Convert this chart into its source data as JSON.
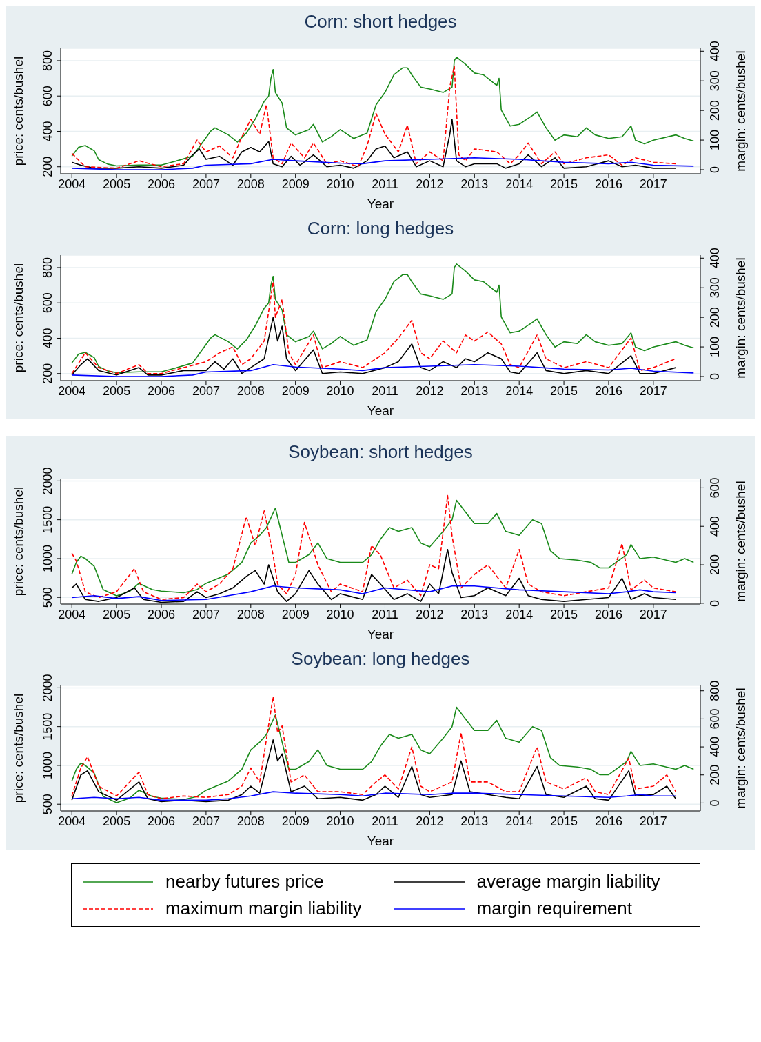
{
  "chart_data": [
    {
      "type": "line",
      "title": "Corn: short hedges",
      "xlabel": "Year",
      "ylabel": "price: cents/bushel",
      "y2label": "margin: cents/bushel",
      "xlim": [
        2003.75,
        2018.05
      ],
      "xticks": [
        2004,
        2005,
        2006,
        2007,
        2008,
        2009,
        2010,
        2011,
        2012,
        2013,
        2014,
        2015,
        2016,
        2017
      ],
      "ylim": [
        160,
        870
      ],
      "yticks": [
        200,
        400,
        600,
        800
      ],
      "y2lim": [
        -14,
        410
      ],
      "y2ticks": [
        0,
        100,
        200,
        300,
        400
      ],
      "grid": "y",
      "legend": false,
      "series": [
        {
          "color": "#1a8a1a",
          "line_style": "solid",
          "x": [
            2004.0,
            2004.15,
            2004.3,
            2004.5,
            2004.6,
            2004.8,
            2005.0,
            2005.5,
            2006.0,
            2006.3,
            2006.7,
            2006.9,
            2007.1,
            2007.2,
            2007.5,
            2007.7,
            2007.9,
            2008.1,
            2008.3,
            2008.4,
            2008.45,
            2008.5,
            2008.55,
            2008.7,
            2008.8,
            2009.0,
            2009.3,
            2009.4,
            2009.6,
            2009.8,
            2010.0,
            2010.3,
            2010.6,
            2010.8,
            2011.0,
            2011.2,
            2011.4,
            2011.5,
            2011.6,
            2011.8,
            2012.0,
            2012.3,
            2012.5,
            2012.55,
            2012.6,
            2012.8,
            2013.0,
            2013.2,
            2013.5,
            2013.55,
            2013.6,
            2013.8,
            2014.0,
            2014.3,
            2014.4,
            2014.6,
            2014.8,
            2015.0,
            2015.3,
            2015.5,
            2015.7,
            2016.0,
            2016.3,
            2016.5,
            2016.6,
            2016.8,
            2017.0,
            2017.5,
            2017.7,
            2017.9
          ],
          "values": [
            260,
            310,
            320,
            290,
            240,
            215,
            205,
            210,
            210,
            230,
            260,
            330,
            400,
            420,
            380,
            340,
            390,
            470,
            570,
            600,
            700,
            750,
            620,
            560,
            420,
            380,
            410,
            440,
            340,
            370,
            410,
            360,
            390,
            550,
            620,
            720,
            760,
            760,
            720,
            650,
            640,
            620,
            650,
            800,
            820,
            780,
            730,
            720,
            660,
            700,
            520,
            430,
            440,
            490,
            510,
            420,
            350,
            380,
            370,
            420,
            380,
            360,
            370,
            430,
            350,
            330,
            350,
            380,
            360,
            345
          ]
        },
        {
          "color": "#000000",
          "line_style": "solid",
          "axis": "y2",
          "x": [
            2004.0,
            2004.2,
            2004.5,
            2005.0,
            2005.5,
            2006.0,
            2006.5,
            2006.7,
            2006.85,
            2007.0,
            2007.3,
            2007.6,
            2007.8,
            2008.0,
            2008.2,
            2008.4,
            2008.5,
            2008.7,
            2008.9,
            2009.1,
            2009.4,
            2009.7,
            2010.0,
            2010.3,
            2010.6,
            2010.8,
            2011.0,
            2011.2,
            2011.5,
            2011.7,
            2012.0,
            2012.3,
            2012.45,
            2012.5,
            2012.6,
            2012.8,
            2013.0,
            2013.5,
            2013.7,
            2014.0,
            2014.2,
            2014.5,
            2014.8,
            2015.0,
            2015.5,
            2016.0,
            2016.3,
            2016.6,
            2017.0,
            2017.5
          ],
          "values": [
            25,
            15,
            5,
            5,
            10,
            5,
            15,
            50,
            70,
            35,
            45,
            15,
            60,
            75,
            60,
            95,
            20,
            10,
            45,
            15,
            50,
            10,
            15,
            5,
            30,
            70,
            80,
            40,
            60,
            10,
            30,
            10,
            120,
            170,
            30,
            10,
            20,
            20,
            5,
            20,
            50,
            10,
            40,
            5,
            10,
            30,
            10,
            15,
            5,
            5
          ]
        },
        {
          "color": "#ff0000",
          "line_style": "dashed",
          "axis": "y2",
          "x": [
            2004.0,
            2004.3,
            2005.0,
            2005.5,
            2006.0,
            2006.5,
            2006.8,
            2007.0,
            2007.3,
            2007.6,
            2007.8,
            2008.0,
            2008.2,
            2008.35,
            2008.5,
            2008.7,
            2008.9,
            2009.2,
            2009.4,
            2009.7,
            2010.0,
            2010.4,
            2010.6,
            2010.8,
            2011.0,
            2011.3,
            2011.5,
            2011.7,
            2012.0,
            2012.3,
            2012.45,
            2012.55,
            2012.65,
            2012.8,
            2013.0,
            2013.5,
            2013.8,
            2014.0,
            2014.2,
            2014.5,
            2014.8,
            2015.0,
            2015.5,
            2016.0,
            2016.3,
            2016.6,
            2017.0,
            2017.5
          ],
          "values": [
            55,
            10,
            5,
            30,
            10,
            20,
            100,
            60,
            80,
            40,
            110,
            170,
            120,
            220,
            40,
            20,
            90,
            40,
            90,
            20,
            30,
            10,
            80,
            190,
            120,
            60,
            150,
            20,
            60,
            30,
            280,
            350,
            50,
            30,
            70,
            60,
            20,
            50,
            90,
            20,
            60,
            20,
            40,
            50,
            15,
            40,
            25,
            20
          ]
        },
        {
          "color": "#0000ff",
          "line_style": "solid",
          "axis": "y2",
          "x": [
            2004.0,
            2005.0,
            2006.0,
            2006.7,
            2007.0,
            2008.0,
            2008.5,
            2009.0,
            2010.0,
            2010.5,
            2011.0,
            2012.0,
            2013.0,
            2014.0,
            2014.5,
            2015.0,
            2016.0,
            2016.5,
            2017.0,
            2017.9
          ],
          "values": [
            5,
            0,
            0,
            5,
            15,
            20,
            35,
            30,
            22,
            20,
            30,
            35,
            40,
            35,
            30,
            25,
            20,
            25,
            15,
            12
          ]
        }
      ]
    },
    {
      "type": "line",
      "title": "Corn: long hedges",
      "xlabel": "Year",
      "ylabel": "price: cents/bushel",
      "y2label": "margin: cents/bushel",
      "xlim": [
        2003.75,
        2018.05
      ],
      "xticks": [
        2004,
        2005,
        2006,
        2007,
        2008,
        2009,
        2010,
        2011,
        2012,
        2013,
        2014,
        2015,
        2016,
        2017
      ],
      "ylim": [
        160,
        870
      ],
      "yticks": [
        200,
        400,
        600,
        800
      ],
      "y2lim": [
        -14,
        410
      ],
      "y2ticks": [
        0,
        100,
        200,
        300,
        400
      ],
      "grid": "y",
      "legend": false,
      "series": [
        {
          "color": "#1a8a1a",
          "line_style": "solid",
          "x": [
            2004.0,
            2004.15,
            2004.3,
            2004.5,
            2004.6,
            2004.8,
            2005.0,
            2005.5,
            2006.0,
            2006.3,
            2006.7,
            2006.9,
            2007.1,
            2007.2,
            2007.5,
            2007.7,
            2007.9,
            2008.1,
            2008.3,
            2008.4,
            2008.45,
            2008.5,
            2008.55,
            2008.7,
            2008.8,
            2009.0,
            2009.3,
            2009.4,
            2009.6,
            2009.8,
            2010.0,
            2010.3,
            2010.6,
            2010.8,
            2011.0,
            2011.2,
            2011.4,
            2011.5,
            2011.6,
            2011.8,
            2012.0,
            2012.3,
            2012.5,
            2012.55,
            2012.6,
            2012.8,
            2013.0,
            2013.2,
            2013.5,
            2013.55,
            2013.6,
            2013.8,
            2014.0,
            2014.3,
            2014.4,
            2014.6,
            2014.8,
            2015.0,
            2015.3,
            2015.5,
            2015.7,
            2016.0,
            2016.3,
            2016.5,
            2016.6,
            2016.8,
            2017.0,
            2017.5,
            2017.7,
            2017.9
          ],
          "values": [
            260,
            310,
            320,
            290,
            240,
            215,
            205,
            210,
            210,
            230,
            260,
            330,
            400,
            420,
            380,
            340,
            390,
            470,
            570,
            600,
            700,
            750,
            620,
            560,
            420,
            380,
            410,
            440,
            340,
            370,
            410,
            360,
            390,
            550,
            620,
            720,
            760,
            760,
            720,
            650,
            640,
            620,
            650,
            800,
            820,
            780,
            730,
            720,
            660,
            700,
            520,
            430,
            440,
            490,
            510,
            420,
            350,
            380,
            370,
            420,
            380,
            360,
            370,
            430,
            350,
            330,
            350,
            380,
            360,
            345
          ]
        },
        {
          "color": "#000000",
          "line_style": "solid",
          "axis": "y2",
          "x": [
            2004.0,
            2004.2,
            2004.35,
            2004.6,
            2005.0,
            2005.5,
            2005.7,
            2006.0,
            2006.5,
            2007.0,
            2007.2,
            2007.4,
            2007.6,
            2007.8,
            2008.0,
            2008.3,
            2008.5,
            2008.6,
            2008.7,
            2008.8,
            2009.0,
            2009.4,
            2009.6,
            2010.0,
            2010.5,
            2011.0,
            2011.3,
            2011.6,
            2011.8,
            2012.0,
            2012.3,
            2012.6,
            2012.8,
            2013.0,
            2013.3,
            2013.6,
            2013.8,
            2014.0,
            2014.4,
            2014.6,
            2015.0,
            2015.5,
            2016.0,
            2016.5,
            2016.7,
            2017.0,
            2017.5
          ],
          "values": [
            5,
            40,
            60,
            20,
            5,
            30,
            5,
            5,
            20,
            20,
            50,
            25,
            60,
            10,
            30,
            60,
            200,
            120,
            170,
            60,
            20,
            90,
            10,
            15,
            10,
            30,
            50,
            110,
            30,
            20,
            50,
            30,
            60,
            50,
            80,
            60,
            15,
            10,
            80,
            20,
            10,
            20,
            10,
            70,
            10,
            10,
            30
          ]
        },
        {
          "color": "#ff0000",
          "line_style": "dashed",
          "axis": "y2",
          "x": [
            2004.0,
            2004.3,
            2004.6,
            2005.0,
            2005.5,
            2005.7,
            2006.0,
            2006.5,
            2007.0,
            2007.3,
            2007.6,
            2007.8,
            2008.0,
            2008.3,
            2008.5,
            2008.55,
            2008.7,
            2008.85,
            2009.0,
            2009.4,
            2009.6,
            2010.0,
            2010.5,
            2011.0,
            2011.3,
            2011.6,
            2011.8,
            2012.0,
            2012.3,
            2012.6,
            2012.8,
            2013.0,
            2013.3,
            2013.6,
            2013.8,
            2014.0,
            2014.4,
            2014.6,
            2015.0,
            2015.5,
            2016.0,
            2016.5,
            2016.7,
            2017.0,
            2017.5
          ],
          "values": [
            10,
            80,
            30,
            10,
            40,
            10,
            10,
            30,
            50,
            80,
            100,
            40,
            60,
            120,
            320,
            200,
            260,
            80,
            40,
            140,
            30,
            50,
            30,
            80,
            130,
            190,
            80,
            60,
            120,
            80,
            140,
            120,
            150,
            110,
            40,
            30,
            140,
            60,
            30,
            50,
            30,
            130,
            20,
            30,
            60
          ]
        },
        {
          "color": "#0000ff",
          "line_style": "solid",
          "axis": "y2",
          "x": [
            2004.0,
            2005.0,
            2006.0,
            2006.7,
            2007.0,
            2008.0,
            2008.5,
            2009.0,
            2010.0,
            2010.5,
            2011.0,
            2012.0,
            2013.0,
            2014.0,
            2014.5,
            2015.0,
            2016.0,
            2016.5,
            2017.0,
            2017.9
          ],
          "values": [
            5,
            0,
            0,
            5,
            15,
            20,
            40,
            32,
            25,
            20,
            30,
            35,
            40,
            35,
            30,
            25,
            22,
            28,
            18,
            12
          ]
        }
      ]
    },
    {
      "type": "line",
      "title": "Soybean: short hedges",
      "xlabel": "Year",
      "ylabel": "price: cents/bushel",
      "y2label": "margin: cents/bushel",
      "xlim": [
        2003.75,
        2018.05
      ],
      "xticks": [
        2004,
        2005,
        2006,
        2007,
        2008,
        2009,
        2010,
        2011,
        2012,
        2013,
        2014,
        2015,
        2016,
        2017
      ],
      "ylim": [
        413,
        2030
      ],
      "yticks": [
        500,
        1000,
        1500,
        2000
      ],
      "y2lim": [
        -4,
        648
      ],
      "y2ticks": [
        0,
        200,
        400,
        600
      ],
      "grid": "y",
      "legend": false,
      "series": [
        {
          "color": "#1a8a1a",
          "line_style": "solid",
          "x": [
            2004.0,
            2004.1,
            2004.2,
            2004.3,
            2004.5,
            2004.7,
            2005.0,
            2005.3,
            2005.5,
            2005.8,
            2006.0,
            2006.5,
            2006.8,
            2007.0,
            2007.5,
            2007.8,
            2008.0,
            2008.2,
            2008.35,
            2008.55,
            2008.7,
            2008.85,
            2009.0,
            2009.3,
            2009.5,
            2009.7,
            2010.0,
            2010.5,
            2010.7,
            2010.9,
            2011.1,
            2011.3,
            2011.6,
            2011.8,
            2012.0,
            2012.3,
            2012.5,
            2012.6,
            2012.8,
            2013.0,
            2013.3,
            2013.5,
            2013.7,
            2014.0,
            2014.3,
            2014.5,
            2014.7,
            2014.9,
            2015.3,
            2015.6,
            2015.8,
            2016.0,
            2016.4,
            2016.5,
            2016.7,
            2017.0,
            2017.5,
            2017.7,
            2017.9
          ],
          "values": [
            800,
            950,
            1030,
            1000,
            900,
            600,
            520,
            580,
            680,
            600,
            580,
            560,
            600,
            680,
            800,
            950,
            1200,
            1300,
            1400,
            1650,
            1300,
            950,
            950,
            1050,
            1200,
            1000,
            950,
            950,
            1050,
            1250,
            1400,
            1350,
            1400,
            1200,
            1150,
            1350,
            1500,
            1750,
            1600,
            1450,
            1450,
            1580,
            1350,
            1300,
            1500,
            1450,
            1100,
            1000,
            980,
            950,
            880,
            880,
            1050,
            1180,
            1000,
            1020,
            950,
            1000,
            950
          ]
        },
        {
          "color": "#000000",
          "line_style": "solid",
          "axis": "y2",
          "x": [
            2004.0,
            2004.1,
            2004.3,
            2004.6,
            2005.0,
            2005.4,
            2005.6,
            2006.0,
            2006.5,
            2006.8,
            2007.0,
            2007.3,
            2007.6,
            2007.9,
            2008.1,
            2008.3,
            2008.4,
            2008.6,
            2008.8,
            2009.0,
            2009.3,
            2009.5,
            2009.8,
            2010.0,
            2010.5,
            2010.7,
            2010.9,
            2011.2,
            2011.5,
            2011.8,
            2012.0,
            2012.2,
            2012.4,
            2012.5,
            2012.7,
            2013.0,
            2013.3,
            2013.7,
            2014.0,
            2014.2,
            2014.5,
            2015.0,
            2015.5,
            2016.0,
            2016.3,
            2016.5,
            2016.8,
            2017.0,
            2017.5
          ],
          "values": [
            80,
            100,
            20,
            10,
            30,
            80,
            20,
            5,
            10,
            60,
            30,
            50,
            80,
            140,
            170,
            100,
            200,
            60,
            10,
            50,
            170,
            100,
            20,
            50,
            20,
            150,
            100,
            20,
            50,
            10,
            100,
            50,
            280,
            160,
            30,
            40,
            80,
            40,
            130,
            40,
            20,
            10,
            20,
            30,
            130,
            20,
            50,
            30,
            20
          ]
        },
        {
          "color": "#ff0000",
          "line_style": "dashed",
          "axis": "y2",
          "x": [
            2004.0,
            2004.1,
            2004.3,
            2004.6,
            2005.0,
            2005.4,
            2005.6,
            2006.0,
            2006.5,
            2006.8,
            2007.0,
            2007.3,
            2007.6,
            2007.9,
            2008.1,
            2008.3,
            2008.5,
            2008.6,
            2008.8,
            2009.0,
            2009.2,
            2009.5,
            2009.8,
            2010.0,
            2010.5,
            2010.7,
            2010.9,
            2011.2,
            2011.5,
            2011.8,
            2012.0,
            2012.2,
            2012.4,
            2012.5,
            2012.7,
            2013.0,
            2013.3,
            2013.7,
            2014.0,
            2014.2,
            2014.5,
            2015.0,
            2015.5,
            2016.0,
            2016.3,
            2016.5,
            2016.8,
            2017.0,
            2017.5
          ],
          "values": [
            260,
            220,
            60,
            30,
            60,
            180,
            60,
            20,
            30,
            100,
            60,
            100,
            180,
            450,
            300,
            480,
            250,
            100,
            50,
            150,
            420,
            200,
            60,
            100,
            60,
            300,
            250,
            80,
            120,
            40,
            200,
            180,
            560,
            350,
            80,
            150,
            200,
            80,
            280,
            100,
            60,
            40,
            60,
            80,
            310,
            70,
            120,
            80,
            60
          ]
        },
        {
          "color": "#0000ff",
          "line_style": "solid",
          "axis": "y2",
          "x": [
            2004.0,
            2004.5,
            2005.0,
            2005.5,
            2006.0,
            2007.0,
            2007.5,
            2008.0,
            2008.5,
            2009.0,
            2010.0,
            2010.5,
            2011.0,
            2012.0,
            2012.5,
            2013.0,
            2014.0,
            2015.0,
            2016.0,
            2016.4,
            2016.7,
            2017.0,
            2017.5
          ],
          "values": [
            30,
            40,
            25,
            35,
            15,
            20,
            40,
            60,
            90,
            80,
            70,
            50,
            80,
            60,
            90,
            90,
            70,
            60,
            50,
            60,
            70,
            60,
            55
          ]
        }
      ]
    },
    {
      "type": "line",
      "title": "Soybean: long hedges",
      "xlabel": "Year",
      "ylabel": "price: cents/bushel",
      "y2label": "margin: cents/bushel",
      "xlim": [
        2003.75,
        2018.05
      ],
      "xticks": [
        2004,
        2005,
        2006,
        2007,
        2008,
        2009,
        2010,
        2011,
        2012,
        2013,
        2014,
        2015,
        2016,
        2017
      ],
      "ylim": [
        413,
        2030
      ],
      "yticks": [
        500,
        1000,
        1500,
        2000
      ],
      "y2lim": [
        -57,
        838
      ],
      "y2ticks": [
        0,
        200,
        400,
        600,
        800
      ],
      "grid": "y",
      "legend": "bottom",
      "series": [
        {
          "name": "nearby futures price",
          "color": "#1a8a1a",
          "line_style": "solid",
          "x": [
            2004.0,
            2004.1,
            2004.2,
            2004.3,
            2004.5,
            2004.7,
            2005.0,
            2005.3,
            2005.5,
            2005.8,
            2006.0,
            2006.5,
            2006.8,
            2007.0,
            2007.5,
            2007.8,
            2008.0,
            2008.2,
            2008.35,
            2008.55,
            2008.7,
            2008.85,
            2009.0,
            2009.3,
            2009.5,
            2009.7,
            2010.0,
            2010.5,
            2010.7,
            2010.9,
            2011.1,
            2011.3,
            2011.6,
            2011.8,
            2012.0,
            2012.3,
            2012.5,
            2012.6,
            2012.8,
            2013.0,
            2013.3,
            2013.5,
            2013.7,
            2014.0,
            2014.3,
            2014.5,
            2014.7,
            2014.9,
            2015.3,
            2015.6,
            2015.8,
            2016.0,
            2016.4,
            2016.5,
            2016.7,
            2017.0,
            2017.5,
            2017.7,
            2017.9
          ],
          "values": [
            800,
            950,
            1030,
            1000,
            900,
            600,
            520,
            580,
            680,
            600,
            580,
            560,
            600,
            680,
            800,
            950,
            1200,
            1300,
            1400,
            1650,
            1300,
            950,
            950,
            1050,
            1200,
            1000,
            950,
            950,
            1050,
            1250,
            1400,
            1350,
            1400,
            1200,
            1150,
            1350,
            1500,
            1750,
            1600,
            1450,
            1450,
            1580,
            1350,
            1300,
            1500,
            1450,
            1100,
            1000,
            980,
            950,
            880,
            880,
            1050,
            1180,
            1000,
            1020,
            950,
            1000,
            950
          ]
        },
        {
          "name": "average margin liability",
          "color": "#000000",
          "line_style": "solid",
          "axis": "y2",
          "x": [
            2004.0,
            2004.2,
            2004.35,
            2004.6,
            2005.0,
            2005.5,
            2005.7,
            2006.0,
            2006.5,
            2007.0,
            2007.5,
            2007.8,
            2008.0,
            2008.2,
            2008.5,
            2008.6,
            2008.7,
            2008.9,
            2009.2,
            2009.5,
            2010.0,
            2010.5,
            2010.8,
            2011.0,
            2011.3,
            2011.6,
            2011.8,
            2012.0,
            2012.5,
            2012.7,
            2012.9,
            2013.3,
            2013.7,
            2014.0,
            2014.4,
            2014.6,
            2015.0,
            2015.5,
            2015.7,
            2016.0,
            2016.45,
            2016.6,
            2017.0,
            2017.3,
            2017.5
          ],
          "values": [
            20,
            200,
            230,
            80,
            20,
            150,
            30,
            10,
            20,
            10,
            20,
            60,
            120,
            70,
            450,
            300,
            350,
            80,
            120,
            30,
            40,
            20,
            60,
            120,
            40,
            260,
            60,
            40,
            60,
            300,
            80,
            60,
            40,
            30,
            260,
            60,
            40,
            120,
            30,
            20,
            230,
            50,
            60,
            120,
            30
          ]
        },
        {
          "name": "maximum margin liability",
          "color": "#ff0000",
          "line_style": "dashed",
          "axis": "y2",
          "x": [
            2004.0,
            2004.2,
            2004.35,
            2004.6,
            2005.0,
            2005.5,
            2005.7,
            2006.0,
            2006.5,
            2007.0,
            2007.5,
            2007.8,
            2008.0,
            2008.2,
            2008.5,
            2008.6,
            2008.7,
            2008.9,
            2009.2,
            2009.5,
            2010.0,
            2010.5,
            2010.8,
            2011.0,
            2011.3,
            2011.6,
            2011.8,
            2012.0,
            2012.5,
            2012.7,
            2012.9,
            2013.3,
            2013.7,
            2014.0,
            2014.4,
            2014.6,
            2015.0,
            2015.5,
            2015.7,
            2016.0,
            2016.45,
            2016.6,
            2017.0,
            2017.3,
            2017.5
          ],
          "values": [
            50,
            250,
            330,
            120,
            50,
            220,
            60,
            30,
            50,
            40,
            60,
            120,
            250,
            150,
            760,
            500,
            550,
            150,
            200,
            80,
            80,
            60,
            150,
            200,
            100,
            400,
            120,
            80,
            150,
            500,
            150,
            150,
            80,
            80,
            400,
            150,
            100,
            180,
            80,
            60,
            320,
            100,
            120,
            200,
            80
          ]
        },
        {
          "name": "margin requirement",
          "color": "#0000ff",
          "line_style": "solid",
          "axis": "y2",
          "x": [
            2004.0,
            2004.5,
            2005.0,
            2005.5,
            2006.0,
            2007.0,
            2007.5,
            2008.0,
            2008.5,
            2009.0,
            2010.0,
            2010.5,
            2011.0,
            2012.0,
            2012.5,
            2013.0,
            2014.0,
            2015.0,
            2016.0,
            2016.4,
            2016.7,
            2017.0,
            2017.5
          ],
          "values": [
            30,
            40,
            30,
            40,
            20,
            20,
            30,
            50,
            80,
            70,
            60,
            50,
            70,
            60,
            70,
            70,
            60,
            50,
            40,
            50,
            60,
            50,
            50
          ]
        }
      ]
    }
  ]
}
